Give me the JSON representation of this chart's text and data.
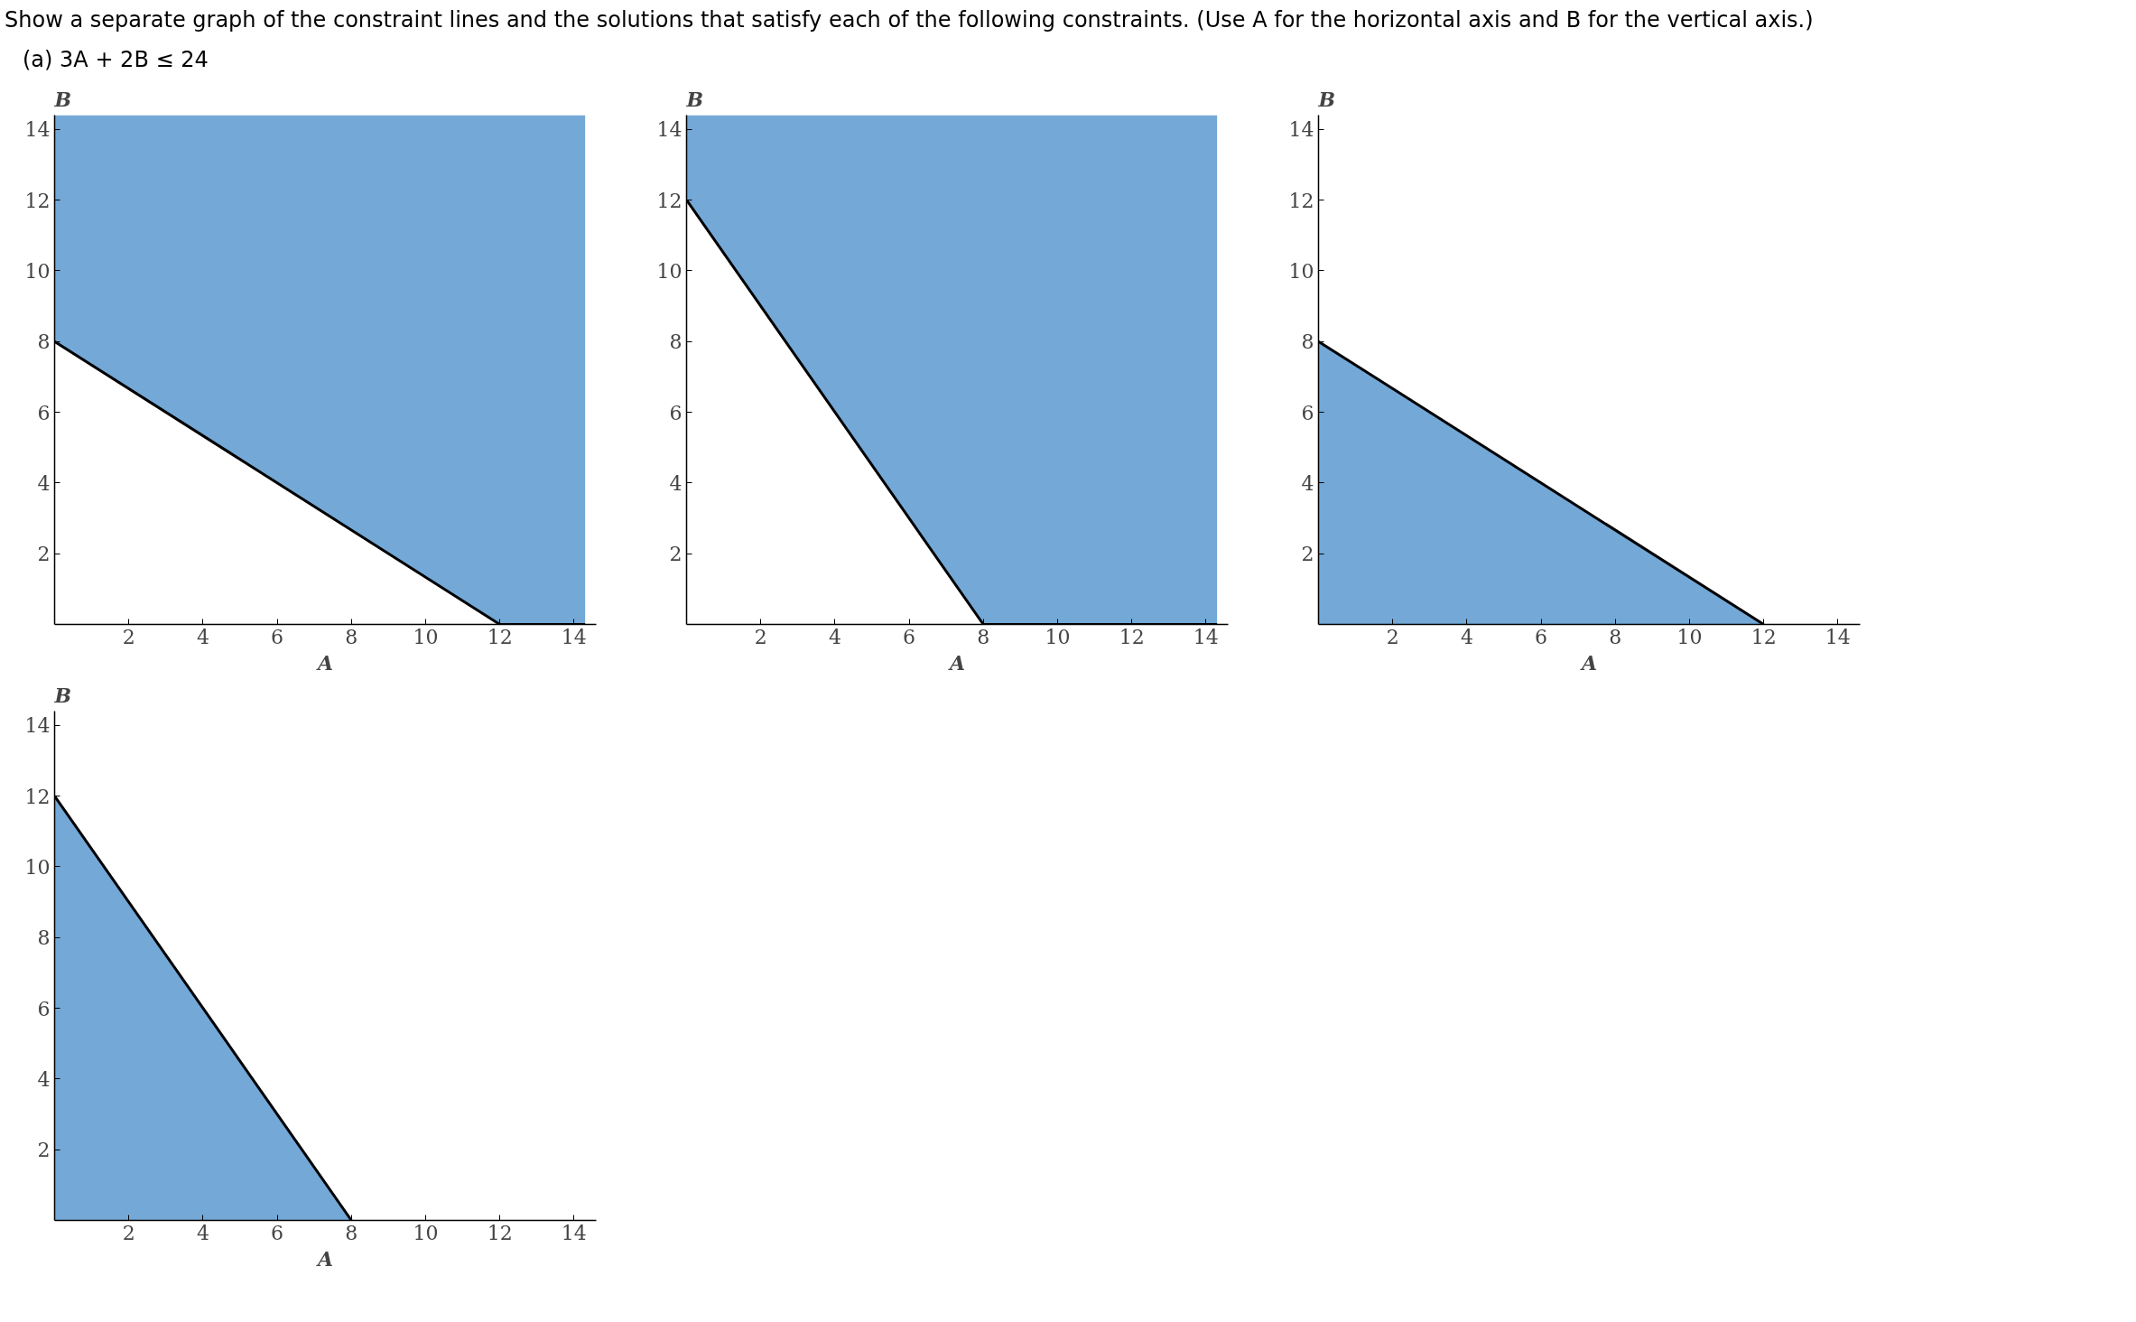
{
  "chart_data": [
    {
      "type": "line",
      "title": "Show a separate graph of the constraint lines and the solutions that satisfy each of the following constraints. (Use A for the horizontal axis and B for the vertical axis.)",
      "subtitle": "(a)  3A + 2B ≤ 24",
      "xlabel": "A",
      "ylabel": "B",
      "xlim": [
        0,
        14.6
      ],
      "ylim": [
        0,
        14.4
      ],
      "xticks": [
        2,
        4,
        6,
        8,
        10,
        12,
        14
      ],
      "yticks": [
        2,
        4,
        6,
        8,
        10,
        12,
        14
      ],
      "grid": false,
      "colors": [
        "#73a8d7"
      ],
      "series": [
        {
          "color": "#000000",
          "x": [
            0,
            12,
            14.3
          ],
          "values": [
            8,
            0,
            0
          ],
          "lower": [
            8,
            0,
            0
          ],
          "upper": [
            14.4,
            14.4,
            14.4
          ]
        }
      ]
    },
    {
      "type": "line",
      "xlabel": "A",
      "ylabel": "B",
      "xlim": [
        0,
        14.6
      ],
      "ylim": [
        0,
        14.4
      ],
      "xticks": [
        2,
        4,
        6,
        8,
        10,
        12,
        14
      ],
      "yticks": [
        2,
        4,
        6,
        8,
        10,
        12,
        14
      ],
      "grid": false,
      "colors": [
        "#73a8d7"
      ],
      "series": [
        {
          "color": "#000000",
          "x": [
            0,
            8,
            14.3
          ],
          "values": [
            12,
            0,
            0
          ],
          "lower": [
            12,
            0,
            0
          ],
          "upper": [
            14.4,
            14.4,
            14.4
          ]
        }
      ]
    },
    {
      "type": "line",
      "xlabel": "A",
      "ylabel": "B",
      "xlim": [
        0,
        14.6
      ],
      "ylim": [
        0,
        14.4
      ],
      "xticks": [
        2,
        4,
        6,
        8,
        10,
        12,
        14
      ],
      "yticks": [
        2,
        4,
        6,
        8,
        10,
        12,
        14
      ],
      "grid": false,
      "colors": [
        "#73a8d7"
      ],
      "series": [
        {
          "color": "#000000",
          "x": [
            0,
            12
          ],
          "values": [
            8,
            0
          ],
          "lower": [
            0,
            0
          ],
          "upper": [
            8,
            0
          ]
        }
      ]
    },
    {
      "type": "line",
      "xlabel": "A",
      "ylabel": "B",
      "xlim": [
        0,
        14.6
      ],
      "ylim": [
        0,
        14.4
      ],
      "xticks": [
        2,
        4,
        6,
        8,
        10,
        12,
        14
      ],
      "yticks": [
        2,
        4,
        6,
        8,
        10,
        12,
        14
      ],
      "grid": false,
      "colors": [
        "#73a8d7"
      ],
      "series": [
        {
          "color": "#000000",
          "x": [
            0,
            8
          ],
          "values": [
            12,
            0
          ],
          "lower": [
            0,
            0
          ],
          "upper": [
            12,
            0
          ]
        }
      ]
    }
  ]
}
